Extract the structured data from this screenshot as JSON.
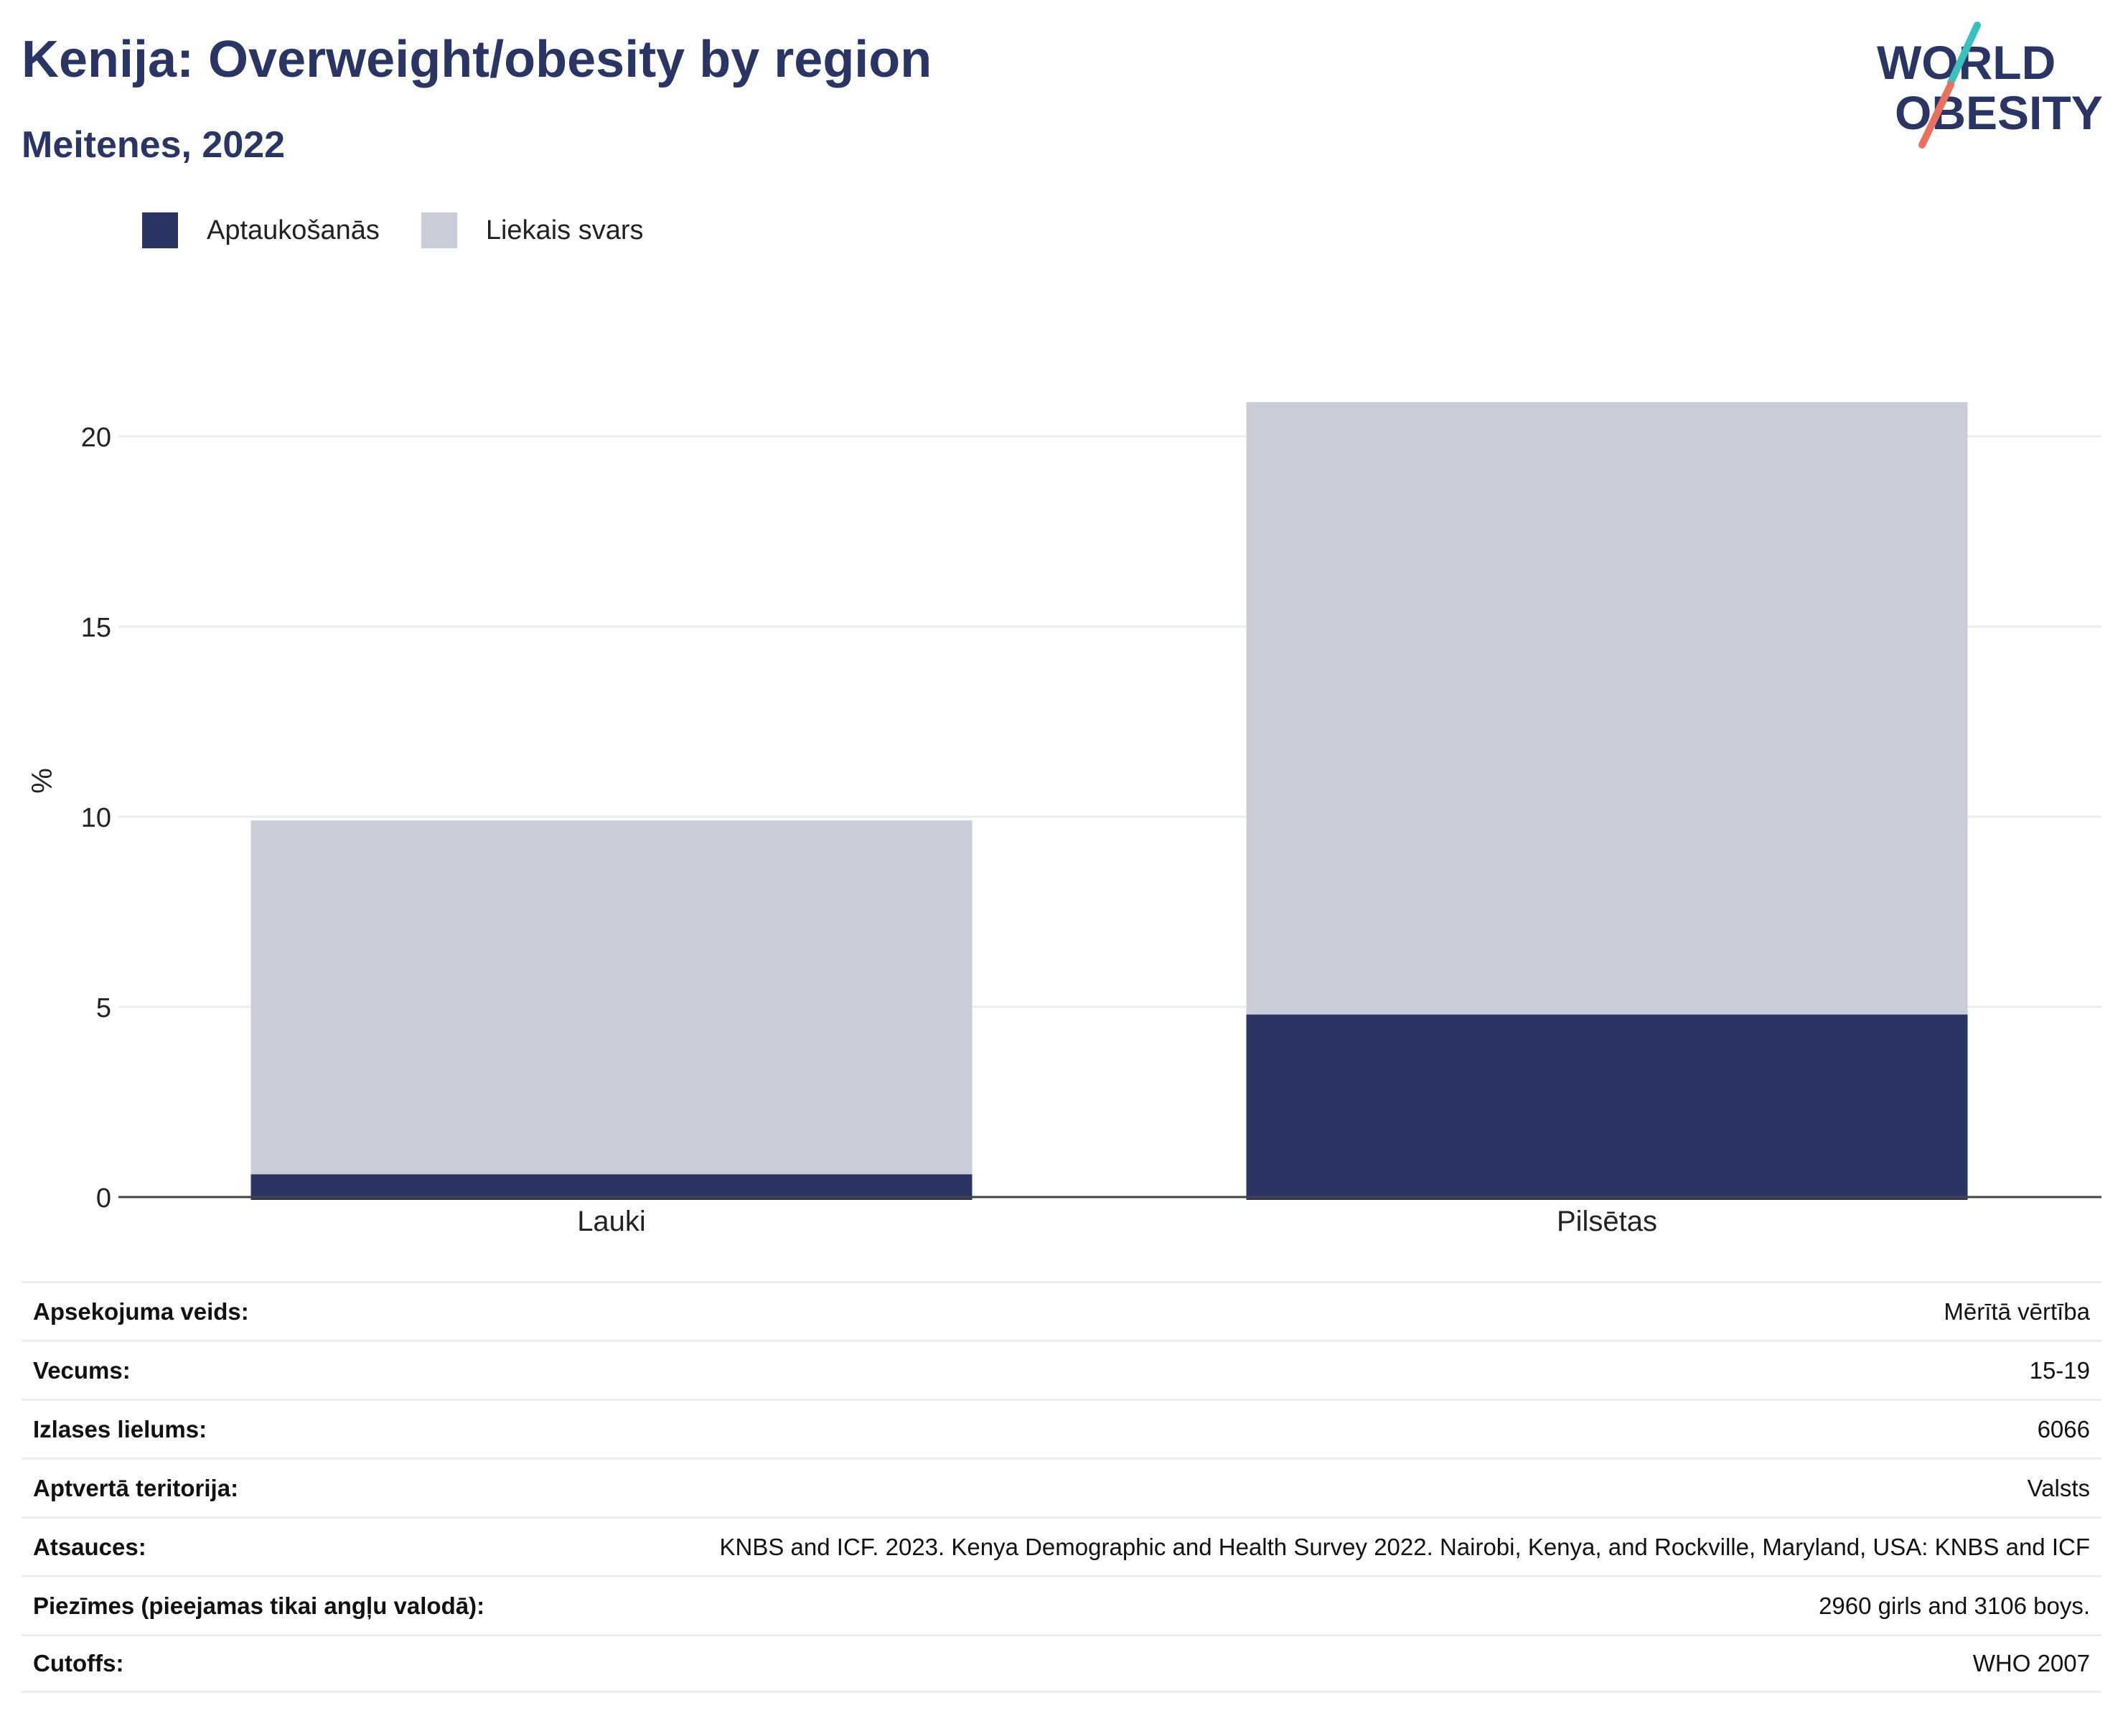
{
  "header": {
    "title": "Kenija: Overweight/obesity by region",
    "subtitle": "Meitenes, 2022"
  },
  "logo": {
    "line1": "WORLD",
    "line2": "OBESITY"
  },
  "colors": {
    "obesity": "#2a3563",
    "overweight": "#cacdd9",
    "grid": "#e8edf2",
    "accent_teal": "#3bbfbf",
    "accent_red": "#e8715f"
  },
  "chart_data": {
    "type": "bar",
    "stacked": true,
    "categories": [
      "Lauki",
      "Pilsētas"
    ],
    "series": [
      {
        "name": "Aptaukošanās",
        "values": [
          0.6,
          4.8
        ]
      },
      {
        "name": "Liekais svars",
        "values": [
          9.3,
          16.1
        ]
      }
    ],
    "ylabel": "%",
    "ylim": [
      0,
      22
    ],
    "yticks": [
      0,
      5,
      10,
      15,
      20
    ],
    "grid": true,
    "legend": "top-left"
  },
  "info_table": [
    {
      "label": "Apsekojuma veids:",
      "value": "Mērītā vērtība"
    },
    {
      "label": "Vecums:",
      "value": "15-19"
    },
    {
      "label": "Izlases lielums:",
      "value": "6066"
    },
    {
      "label": "Aptvertā teritorija:",
      "value": "Valsts"
    },
    {
      "label": "Atsauces:",
      "value": "KNBS and ICF. 2023. Kenya Demographic and Health Survey 2022. Nairobi, Kenya, and Rockville, Maryland, USA: KNBS and ICF"
    },
    {
      "label": "Piezīmes (pieejamas tikai angļu valodā):",
      "value": "2960 girls and 3106 boys."
    },
    {
      "label": "Cutoffs:",
      "value": "WHO 2007"
    }
  ]
}
